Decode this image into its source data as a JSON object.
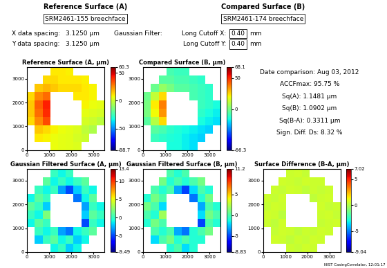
{
  "header": {
    "reference_title": "Reference Surface (A)",
    "reference_name": "SRM2461-155 breechface",
    "compared_title": "Compared Surface (B)",
    "compared_name": "SRM2461-174 breechface",
    "x_spacing_label": "X data spacing:",
    "x_spacing": "3.1250 µm",
    "y_spacing_label": "Y data spacing:",
    "y_spacing": "3.1250 µm",
    "filter_label": "Gaussian Filter:",
    "cutoff_x_label": "Long Cutoff X:",
    "cutoff_x": "0.40",
    "cutoff_y_label": "Long Cutoff Y:",
    "cutoff_y": "0.40",
    "cutoff_unit": "mm"
  },
  "stats": [
    "Date comparison: Aug 03, 2012",
    "ACCFmax: 95.75 %",
    "Sq(A): 1.1481 µm",
    "Sq(B): 1.0902 µm",
    "Sq(B-A): 0.3311 µm",
    "Sign. Diff. Ds: 8.32 %"
  ],
  "footer": "NIST CasingCorrelator, 12:01:17",
  "chart_data": [
    {
      "type": "heatmap",
      "title": "Reference Surface (A, µm)",
      "x_edges": [
        0,
        350,
        700,
        1050,
        1400,
        1750,
        2100,
        2450,
        2800,
        3150,
        3500
      ],
      "y_edges": [
        0,
        350,
        700,
        1050,
        1400,
        1750,
        2100,
        2450,
        2800,
        3150,
        3500
      ],
      "cells": [
        [
          null,
          null,
          null,
          6,
          5,
          4,
          3,
          null,
          null,
          null
        ],
        [
          null,
          10,
          8,
          6,
          5,
          4,
          2,
          0,
          null,
          null
        ],
        [
          null,
          15,
          12,
          8,
          6,
          5,
          3,
          -2,
          -5,
          null
        ],
        [
          12,
          25,
          35,
          null,
          null,
          null,
          null,
          2,
          0,
          -3
        ],
        [
          15,
          30,
          40,
          null,
          null,
          null,
          null,
          5,
          3,
          2
        ],
        [
          15,
          32,
          42,
          null,
          null,
          null,
          null,
          8,
          6,
          5
        ],
        [
          12,
          25,
          30,
          null,
          null,
          null,
          10,
          10,
          8,
          null
        ],
        [
          null,
          15,
          18,
          15,
          12,
          12,
          12,
          10,
          8,
          null
        ],
        [
          null,
          null,
          12,
          12,
          10,
          10,
          10,
          9,
          null,
          null
        ],
        [
          null,
          null,
          null,
          10,
          10,
          9,
          null,
          null,
          null,
          null
        ]
      ],
      "xlim": [
        0,
        3500
      ],
      "ylim": [
        0,
        3500
      ],
      "xticks": [
        0,
        1000,
        2000,
        3000
      ],
      "yticks": [
        0,
        1000,
        2000,
        3000
      ],
      "colorbar_range": [
        -88.7,
        60.3
      ],
      "colorbar_ticks": [
        -88.7,
        -50,
        0,
        50,
        60.3
      ]
    },
    {
      "type": "heatmap",
      "title": "Compared Surface (B, µm)",
      "x_edges": [
        0,
        350,
        700,
        1050,
        1400,
        1750,
        2100,
        2450,
        2800,
        3150,
        3500
      ],
      "y_edges": [
        0,
        350,
        700,
        1050,
        1400,
        1750,
        2100,
        2450,
        2800,
        3150,
        3500
      ],
      "cells": [
        [
          null,
          null,
          null,
          -15,
          -15,
          -18,
          -20,
          null,
          null,
          null
        ],
        [
          null,
          -10,
          -12,
          -14,
          -15,
          -18,
          -20,
          -22,
          null,
          null
        ],
        [
          null,
          -5,
          -8,
          -12,
          -14,
          -16,
          -18,
          -20,
          -22,
          null
        ],
        [
          -5,
          10,
          25,
          null,
          null,
          null,
          null,
          -15,
          -18,
          -20
        ],
        [
          0,
          20,
          35,
          null,
          null,
          null,
          null,
          -12,
          -15,
          -18
        ],
        [
          0,
          22,
          38,
          null,
          null,
          null,
          null,
          -10,
          -12,
          -15
        ],
        [
          -2,
          12,
          25,
          null,
          null,
          null,
          -8,
          -10,
          -12,
          null
        ],
        [
          null,
          -2,
          5,
          0,
          -5,
          -5,
          -8,
          -10,
          -12,
          null
        ],
        [
          null,
          null,
          -5,
          -5,
          -8,
          -8,
          -10,
          -12,
          null,
          null
        ],
        [
          null,
          null,
          null,
          -8,
          -10,
          -10,
          null,
          null,
          null,
          null
        ]
      ],
      "xlim": [
        0,
        3500
      ],
      "ylim": [
        0,
        3500
      ],
      "xticks": [
        0,
        1000,
        2000,
        3000
      ],
      "yticks": [
        0,
        1000,
        2000,
        3000
      ],
      "colorbar_range": [
        -66.3,
        68.1
      ],
      "colorbar_ticks": [
        -66.3,
        0,
        50,
        68.1
      ]
    },
    {
      "type": "heatmap",
      "title": "Gaussian Filtered Surface (A, µm)",
      "x_edges": [
        0,
        350,
        700,
        1050,
        1400,
        1750,
        2100,
        2450,
        2800,
        3150,
        3500
      ],
      "y_edges": [
        0,
        350,
        700,
        1050,
        1400,
        1750,
        2100,
        2450,
        2800,
        3150,
        3500
      ],
      "cells": [
        [
          null,
          null,
          null,
          -1,
          0,
          -2,
          -1,
          null,
          null,
          null
        ],
        [
          null,
          -2,
          0,
          1,
          -1,
          0,
          -2,
          -1,
          null,
          null
        ],
        [
          null,
          0,
          -1,
          0,
          -3,
          -4,
          -1,
          0,
          1,
          null
        ],
        [
          -1,
          1,
          0,
          null,
          null,
          null,
          null,
          -5,
          0,
          -1
        ],
        [
          0,
          -1,
          2,
          null,
          null,
          null,
          null,
          -2,
          1,
          0
        ],
        [
          1,
          0,
          -2,
          null,
          null,
          null,
          null,
          -3,
          0,
          -1
        ],
        [
          -1,
          1,
          0,
          null,
          null,
          null,
          -4,
          -1,
          1,
          null
        ],
        [
          null,
          0,
          -1,
          0,
          -3,
          -5,
          -2,
          0,
          -1,
          null
        ],
        [
          null,
          null,
          1,
          -1,
          0,
          -1,
          0,
          1,
          null,
          null
        ],
        [
          null,
          null,
          null,
          0,
          -1,
          0,
          null,
          null,
          null,
          null
        ]
      ],
      "xlim": [
        0,
        3500
      ],
      "ylim": [
        0,
        3500
      ],
      "xticks": [
        0,
        1000,
        2000,
        3000
      ],
      "yticks": [
        0,
        1000,
        2000,
        3000
      ],
      "colorbar_range": [
        -9.49,
        13.4
      ],
      "colorbar_ticks": [
        -9.49,
        -5,
        0,
        5,
        10,
        13.4
      ]
    },
    {
      "type": "heatmap",
      "title": "Gaussian Filtered Surface (B, µm)",
      "x_edges": [
        0,
        350,
        700,
        1050,
        1400,
        1750,
        2100,
        2450,
        2800,
        3150,
        3500
      ],
      "y_edges": [
        0,
        350,
        700,
        1050,
        1400,
        1750,
        2100,
        2450,
        2800,
        3150,
        3500
      ],
      "cells": [
        [
          null,
          null,
          null,
          -1,
          0,
          -2,
          -1,
          null,
          null,
          null
        ],
        [
          null,
          -2,
          0,
          1,
          -1,
          0,
          -1,
          -1,
          null,
          null
        ],
        [
          null,
          0,
          -1,
          0,
          -3,
          -4,
          -1,
          0,
          1,
          null
        ],
        [
          -1,
          1,
          0,
          null,
          null,
          null,
          null,
          -5,
          0,
          -1
        ],
        [
          0,
          -1,
          2,
          null,
          null,
          null,
          null,
          -2,
          1,
          0
        ],
        [
          1,
          0,
          -2,
          null,
          null,
          null,
          null,
          -3,
          0,
          -1
        ],
        [
          -1,
          1,
          0,
          null,
          null,
          null,
          -4,
          -1,
          1,
          null
        ],
        [
          null,
          0,
          -1,
          0,
          -3,
          -5,
          -2,
          0,
          -1,
          null
        ],
        [
          null,
          null,
          1,
          -1,
          0,
          -1,
          0,
          1,
          null,
          null
        ],
        [
          null,
          null,
          null,
          0,
          -1,
          0,
          null,
          null,
          null,
          null
        ]
      ],
      "xlim": [
        0,
        3500
      ],
      "ylim": [
        0,
        3500
      ],
      "xticks": [
        0,
        1000,
        2000,
        3000
      ],
      "yticks": [
        0,
        1000,
        2000,
        3000
      ],
      "colorbar_range": [
        -8.83,
        11.2
      ],
      "colorbar_ticks": [
        -8.83,
        -5,
        0,
        5,
        11.2
      ]
    },
    {
      "type": "heatmap",
      "title": "Surface Difference (B-A, µm)",
      "x_edges": [
        0,
        350,
        700,
        1050,
        1400,
        1750,
        2100,
        2450,
        2800,
        3150,
        3500
      ],
      "y_edges": [
        0,
        350,
        700,
        1050,
        1400,
        1750,
        2100,
        2450,
        2800,
        3150,
        3500
      ],
      "cells": [
        [
          null,
          null,
          null,
          0.5,
          0.4,
          0.6,
          0.5,
          null,
          null,
          null
        ],
        [
          null,
          0.6,
          0.5,
          0.3,
          0.5,
          0.4,
          0.6,
          0.5,
          null,
          null
        ],
        [
          null,
          0.4,
          0.6,
          0.5,
          0.3,
          0.5,
          0.4,
          0.6,
          0.5,
          null
        ],
        [
          0.5,
          0.3,
          0.6,
          null,
          null,
          null,
          null,
          0.4,
          0.5,
          0.6
        ],
        [
          0.6,
          0.5,
          0.2,
          null,
          null,
          null,
          null,
          0.5,
          0.6,
          0.4
        ],
        [
          0.4,
          0.6,
          0.5,
          null,
          null,
          null,
          null,
          0.6,
          0.4,
          0.5
        ],
        [
          0.5,
          0.4,
          0.6,
          null,
          null,
          null,
          0.3,
          0.5,
          0.6,
          null
        ],
        [
          null,
          0.5,
          0.4,
          0.6,
          0.5,
          0.3,
          0.5,
          0.4,
          0.5,
          null
        ],
        [
          null,
          null,
          0.6,
          0.5,
          0.4,
          0.6,
          0.5,
          0.5,
          null,
          null
        ],
        [
          null,
          null,
          null,
          0.5,
          0.6,
          0.4,
          null,
          null,
          null,
          null
        ]
      ],
      "xlim": [
        0,
        3500
      ],
      "ylim": [
        0,
        3500
      ],
      "xticks": [
        0,
        1000,
        2000,
        3000
      ],
      "yticks": [
        0,
        1000,
        2000,
        3000
      ],
      "colorbar_range": [
        -9.04,
        7.02
      ],
      "colorbar_ticks": [
        -9.04,
        -5,
        0,
        5,
        7.02
      ]
    }
  ]
}
